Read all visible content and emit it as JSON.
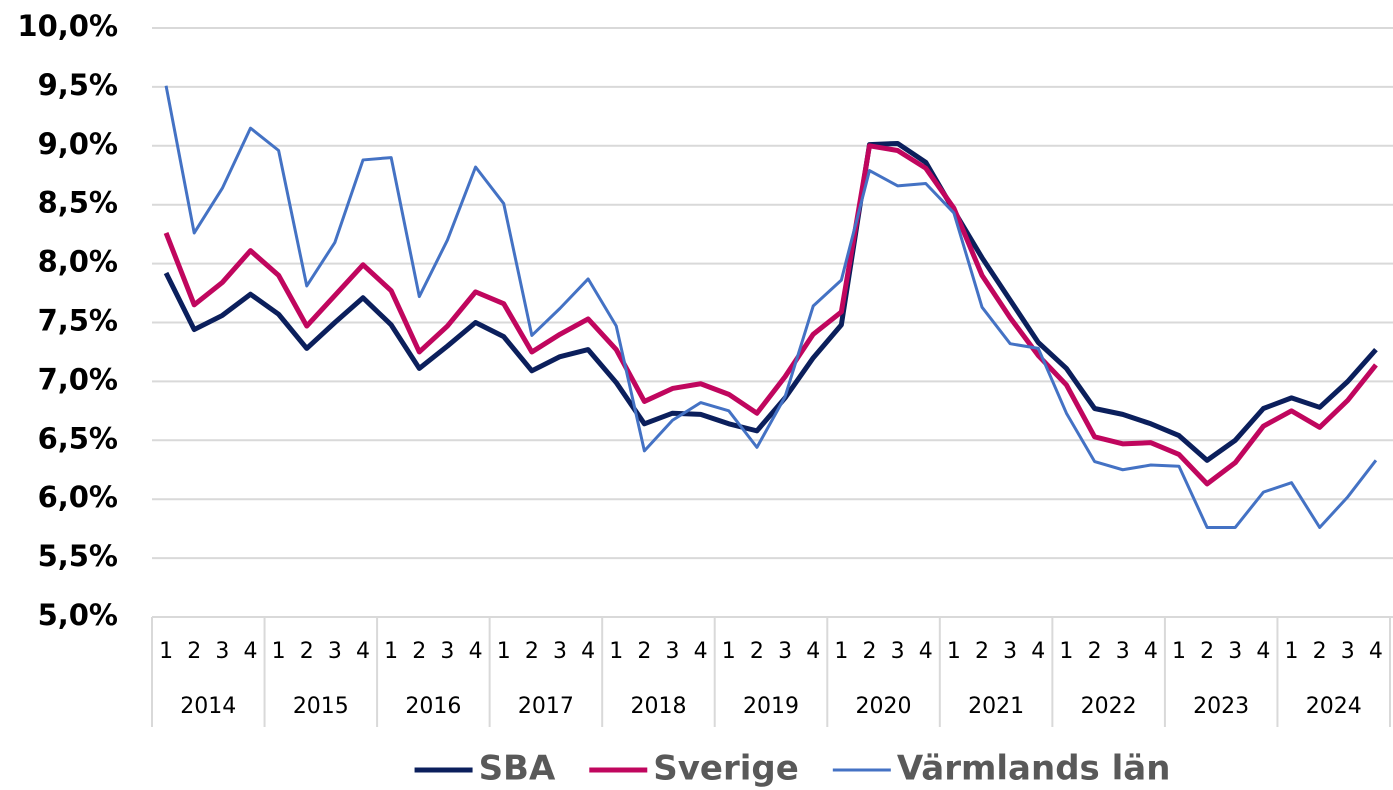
{
  "chart_data": {
    "type": "line",
    "categories": [
      "1",
      "2",
      "3",
      "4",
      "1",
      "2",
      "3",
      "4",
      "1",
      "2",
      "3",
      "4",
      "1",
      "2",
      "3",
      "4",
      "1",
      "2",
      "3",
      "4",
      "1",
      "2",
      "3",
      "4",
      "1",
      "2",
      "3",
      "4",
      "1",
      "2",
      "3",
      "4",
      "1",
      "2",
      "3",
      "4",
      "1",
      "2",
      "3",
      "4",
      "1",
      "2",
      "3",
      "4"
    ],
    "years": [
      "2014",
      "2015",
      "2016",
      "2017",
      "2018",
      "2019",
      "2020",
      "2021",
      "2022",
      "2023",
      "2024"
    ],
    "series": [
      {
        "name": "SBA",
        "color": "#0b1f5c",
        "values": [
          7.92,
          7.44,
          7.56,
          7.74,
          7.57,
          7.28,
          7.5,
          7.71,
          7.48,
          7.11,
          7.3,
          7.5,
          7.38,
          7.09,
          7.21,
          7.27,
          6.99,
          6.64,
          6.73,
          6.72,
          6.64,
          6.58,
          6.86,
          7.2,
          7.48,
          9.01,
          9.02,
          8.86,
          8.45,
          8.05,
          7.69,
          7.33,
          7.11,
          6.77,
          6.72,
          6.64,
          6.54,
          6.33,
          6.5,
          6.77,
          6.86,
          6.78,
          7.0,
          7.27
        ]
      },
      {
        "name": "Sverige",
        "color": "#c0065e",
        "values": [
          8.26,
          7.65,
          7.84,
          8.11,
          7.9,
          7.47,
          7.73,
          7.99,
          7.77,
          7.25,
          7.47,
          7.76,
          7.66,
          7.25,
          7.4,
          7.53,
          7.27,
          6.83,
          6.94,
          6.98,
          6.89,
          6.73,
          7.04,
          7.4,
          7.59,
          9.0,
          8.96,
          8.81,
          8.47,
          7.9,
          7.54,
          7.22,
          6.97,
          6.53,
          6.47,
          6.48,
          6.38,
          6.13,
          6.31,
          6.62,
          6.75,
          6.61,
          6.84,
          7.14
        ]
      },
      {
        "name": "Värmlands län",
        "color": "#4472c4",
        "values": [
          9.51,
          8.26,
          8.64,
          9.15,
          8.96,
          7.81,
          8.18,
          8.88,
          8.9,
          7.72,
          8.2,
          8.82,
          8.51,
          7.39,
          7.62,
          7.87,
          7.47,
          6.41,
          6.67,
          6.82,
          6.75,
          6.44,
          6.87,
          7.64,
          7.86,
          8.79,
          8.66,
          8.68,
          8.43,
          7.63,
          7.32,
          7.28,
          6.73,
          6.32,
          6.25,
          6.29,
          6.28,
          5.76,
          5.76,
          6.06,
          6.14,
          5.76,
          6.02,
          6.33
        ]
      }
    ],
    "ylim": [
      5.0,
      10.0
    ],
    "yticks": [
      {
        "value": 5.0,
        "label": "5,0%"
      },
      {
        "value": 5.5,
        "label": "5,5%"
      },
      {
        "value": 6.0,
        "label": "6,0%"
      },
      {
        "value": 6.5,
        "label": "6,5%"
      },
      {
        "value": 7.0,
        "label": "7,0%"
      },
      {
        "value": 7.5,
        "label": "7,5%"
      },
      {
        "value": 8.0,
        "label": "8,0%"
      },
      {
        "value": 8.5,
        "label": "8,5%"
      },
      {
        "value": 9.0,
        "label": "9,0%"
      },
      {
        "value": 9.5,
        "label": "9,5%"
      },
      {
        "value": 10.0,
        "label": "10,0%"
      }
    ],
    "grid": true,
    "legend": "bottom"
  }
}
